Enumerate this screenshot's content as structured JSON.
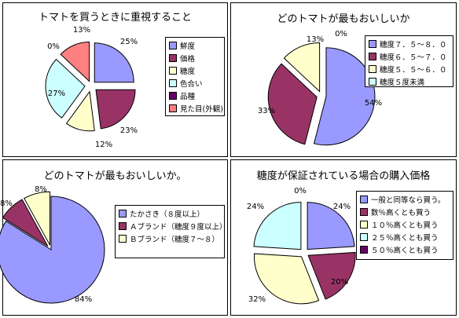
{
  "chart_data": [
    {
      "type": "pie",
      "title": "トマトを買うときに重視すること",
      "series": [
        {
          "name": "鮮度",
          "value": 25,
          "color": "#9999ff",
          "label": "25%"
        },
        {
          "name": "価格",
          "value": 23,
          "color": "#993366",
          "label": "23%"
        },
        {
          "name": "糖度",
          "value": 12,
          "color": "#ffffcc",
          "label": "12%"
        },
        {
          "name": "色合い",
          "value": 27,
          "color": "#ccffff",
          "label": "27%"
        },
        {
          "name": "品種",
          "value": 0,
          "color": "#660066",
          "label": "0%"
        },
        {
          "name": "見た目(外観)",
          "value": 13,
          "color": "#ff8080",
          "label": "13%"
        }
      ],
      "legend_position": "right"
    },
    {
      "type": "pie",
      "title": "どのトマトが最もおいしいか",
      "series": [
        {
          "name": "糖度７．５～８．０",
          "value": 54,
          "color": "#9999ff",
          "label": "54%"
        },
        {
          "name": "糖度６．５～７．０",
          "value": 33,
          "color": "#993366",
          "label": "33%"
        },
        {
          "name": "糖度５．５～６．０",
          "value": 13,
          "color": "#ffffcc",
          "label": "13%"
        },
        {
          "name": "糖度５度未満",
          "value": 0,
          "color": "#ccffff",
          "label": "0%"
        }
      ],
      "legend_position": "right"
    },
    {
      "type": "pie",
      "title": "どのトマトが最もおいしいか。",
      "series": [
        {
          "name": "たかさき（８度以上）",
          "value": 84,
          "color": "#9999ff",
          "label": "84%"
        },
        {
          "name": "Ａブランド（糖度９度以上）",
          "value": 8,
          "color": "#993366",
          "label": "8%"
        },
        {
          "name": "Ｂブランド（糖度７～８）",
          "value": 8,
          "color": "#ffffcc",
          "label": "8%"
        }
      ],
      "legend_position": "right"
    },
    {
      "type": "pie",
      "title": "糖度が保証されている場合の購入価格",
      "series": [
        {
          "name": "一般と同等なら買う。",
          "value": 24,
          "color": "#9999ff",
          "label": "24%"
        },
        {
          "name": "数％高くとも買う",
          "value": 20,
          "color": "#993366",
          "label": "20%"
        },
        {
          "name": "１０％高くとも買う",
          "value": 32,
          "color": "#ffffcc",
          "label": "32%"
        },
        {
          "name": "２５％高くとも買う",
          "value": 24,
          "color": "#ccffff",
          "label": "24%"
        },
        {
          "name": "５０％高くとも買う",
          "value": 0,
          "color": "#660066",
          "label": "0%"
        }
      ],
      "legend_position": "right"
    }
  ]
}
